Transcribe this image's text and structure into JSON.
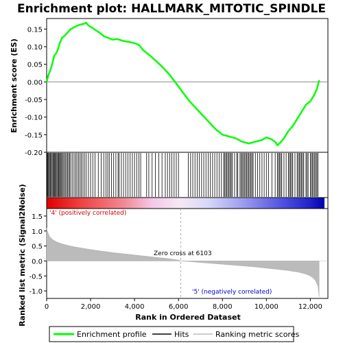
{
  "chart_data": [
    {
      "type": "line",
      "title": "Enrichment plot: HALLMARK_MITOTIC_SPINDLE",
      "ylabel": "Enrichment score (ES)",
      "ylim": [
        -0.2,
        0.18
      ],
      "yticks": [
        "0.15",
        "0.10",
        "0.05",
        "0.00",
        "-0.05",
        "-0.10",
        "-0.15",
        "-0.20"
      ],
      "ytick_values": [
        0.15,
        0.1,
        0.05,
        0.0,
        -0.05,
        -0.1,
        -0.15,
        -0.2
      ],
      "xlim": [
        0,
        12800
      ],
      "grid": false,
      "series": [
        {
          "name": "Enrichment profile",
          "color": "#00ff00",
          "x": [
            0,
            80,
            150,
            250,
            350,
            420,
            500,
            600,
            700,
            800,
            950,
            1100,
            1250,
            1400,
            1550,
            1700,
            1800,
            1900,
            2050,
            2200,
            2400,
            2600,
            2800,
            3000,
            3200,
            3400,
            3600,
            3800,
            4000,
            4200,
            4400,
            4700,
            5000,
            5300,
            5600,
            5900,
            6200,
            6500,
            6800,
            7100,
            7400,
            7700,
            8000,
            8300,
            8600,
            8900,
            9200,
            9500,
            9800,
            10000,
            10200,
            10400,
            10500,
            10600,
            10800,
            11000,
            11200,
            11400,
            11600,
            11800,
            12000,
            12150,
            12300,
            12400
          ],
          "y": [
            0.0,
            0.02,
            0.03,
            0.05,
            0.075,
            0.08,
            0.09,
            0.11,
            0.125,
            0.13,
            0.14,
            0.15,
            0.155,
            0.16,
            0.163,
            0.165,
            0.168,
            0.16,
            0.155,
            0.148,
            0.14,
            0.13,
            0.125,
            0.12,
            0.122,
            0.118,
            0.115,
            0.113,
            0.11,
            0.105,
            0.09,
            0.075,
            0.058,
            0.04,
            0.02,
            -0.005,
            -0.03,
            -0.055,
            -0.075,
            -0.095,
            -0.115,
            -0.135,
            -0.15,
            -0.155,
            -0.16,
            -0.17,
            -0.175,
            -0.17,
            -0.165,
            -0.158,
            -0.162,
            -0.17,
            -0.18,
            -0.175,
            -0.16,
            -0.14,
            -0.125,
            -0.105,
            -0.085,
            -0.065,
            -0.055,
            -0.04,
            -0.02,
            0.005
          ]
        }
      ],
      "zero_line_color": "#888888"
    },
    {
      "type": "heatmap",
      "name": "hits",
      "hits": [
        30,
        60,
        95,
        130,
        170,
        210,
        250,
        290,
        320,
        360,
        400,
        430,
        470,
        510,
        550,
        590,
        620,
        660,
        700,
        750,
        800,
        850,
        900,
        950,
        1000,
        1050,
        1100,
        1180,
        1250,
        1320,
        1380,
        1450,
        1520,
        1580,
        1650,
        1720,
        1800,
        1900,
        2000,
        2100,
        2200,
        2350,
        2480,
        2600,
        2700,
        2780,
        2850,
        2950,
        3050,
        3150,
        3250,
        3300,
        3400,
        3500,
        3600,
        3700,
        3800,
        3900,
        4000,
        4100,
        4200,
        4280,
        4550,
        4650,
        4800,
        4950,
        5100,
        5250,
        5400,
        5500,
        5600,
        5700,
        5800,
        5900,
        6000,
        6450,
        6550,
        6650,
        6750,
        6850,
        6950,
        7050,
        7150,
        7250,
        7350,
        7450,
        7550,
        7650,
        7750,
        7850,
        7950,
        8050,
        8100,
        8150,
        8200,
        8250,
        8300,
        8350,
        8400,
        8450,
        8550,
        8650,
        8700,
        8800,
        8850,
        8900,
        8950,
        9000,
        9050,
        9100,
        9150,
        9200,
        9250,
        9300,
        9350,
        9400,
        9500,
        9600,
        9700,
        9800,
        9900,
        10000,
        10100,
        10250,
        10400,
        10500,
        10550,
        10600,
        10650,
        10700,
        10800,
        10900,
        11000,
        11050,
        11100,
        11150,
        11200,
        11300,
        11400,
        11450,
        11500,
        11550,
        11600,
        11650,
        11700,
        11800,
        11850,
        11900,
        12000,
        12050,
        12100,
        12150,
        12200,
        12250,
        12300,
        12350
      ]
    },
    {
      "type": "area",
      "ylabel": "Ranked list metric (Signal2Noise)",
      "xlabel": "Rank in Ordered Dataset",
      "ylim": [
        -1.25,
        1.75
      ],
      "yticks": [
        "1.5",
        "1.0",
        "0.5",
        "0.0",
        "-0.5",
        "-1.0"
      ],
      "ytick_values": [
        1.5,
        1.0,
        0.5,
        0.0,
        -0.5,
        -1.0
      ],
      "xticks": [
        "0",
        "2,000",
        "4,000",
        "6,000",
        "8,000",
        "10,000",
        "12,000"
      ],
      "xtick_values": [
        0,
        2000,
        4000,
        6000,
        8000,
        10000,
        12000
      ],
      "xlim": [
        0,
        12800
      ],
      "x": [
        0,
        30,
        80,
        150,
        300,
        500,
        800,
        1200,
        1600,
        2000,
        2500,
        3000,
        3500,
        4000,
        4500,
        5000,
        5500,
        6000,
        6103,
        6500,
        7000,
        7500,
        8000,
        8500,
        9000,
        9500,
        10000,
        10500,
        11000,
        11500,
        11800,
        12000,
        12150,
        12250,
        12350,
        12400
      ],
      "y": [
        1.1,
        1.0,
        0.9,
        0.8,
        0.7,
        0.62,
        0.55,
        0.48,
        0.43,
        0.38,
        0.33,
        0.28,
        0.24,
        0.2,
        0.16,
        0.12,
        0.08,
        0.03,
        0.0,
        -0.02,
        -0.05,
        -0.08,
        -0.11,
        -0.14,
        -0.17,
        -0.2,
        -0.24,
        -0.28,
        -0.32,
        -0.38,
        -0.44,
        -0.5,
        -0.58,
        -0.68,
        -0.85,
        -1.2
      ],
      "annotations": [
        {
          "text": "'4' (positively correlated)",
          "color": "#cc0000"
        },
        {
          "text": "Zero cross at 6103",
          "color": "#000000"
        },
        {
          "text": "'5' (negatively correlated)",
          "color": "#0000cc"
        }
      ],
      "zero_cross": 6103
    }
  ],
  "legend": {
    "items": [
      {
        "label": "Enrichment profile",
        "color": "#00ff00"
      },
      {
        "label": "Hits",
        "color": "#000000"
      },
      {
        "label": "Ranking metric scores",
        "color": "#bbbbbb"
      }
    ]
  }
}
